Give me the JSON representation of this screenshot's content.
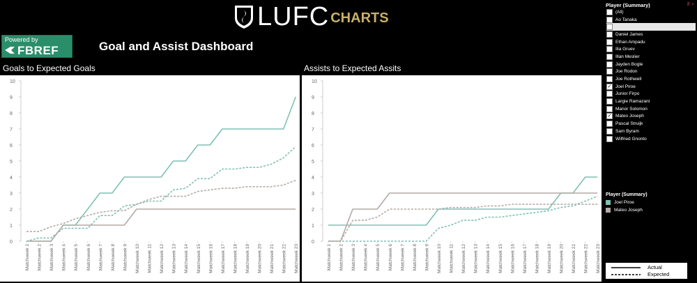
{
  "header": {
    "logo_main": "LUFC",
    "logo_sub": "CHARTS"
  },
  "badge": {
    "powered": "Powered by",
    "brand": "FBREF"
  },
  "dashboard_title": "Goal and Assist Dashboard",
  "colors": {
    "joel_piroe": "#7fc1b3",
    "mateo_joseph": "#b3aaa6",
    "background": "#000000",
    "fbref_green": "#2a8e6b"
  },
  "filter": {
    "title": "Player (Summary)",
    "items": [
      {
        "label": "(All)",
        "checked": false
      },
      {
        "label": "Ao Tanaka",
        "checked": false
      },
      {
        "label": "",
        "checked": false,
        "selected": true
      },
      {
        "label": "Daniel James",
        "checked": false
      },
      {
        "label": "Ethan Ampadu",
        "checked": false
      },
      {
        "label": "Ilia Gruev",
        "checked": false
      },
      {
        "label": "Illan Meslier",
        "checked": false
      },
      {
        "label": "Jayden Bogle",
        "checked": false
      },
      {
        "label": "Joe Rodon",
        "checked": false
      },
      {
        "label": "Joe Rothwell",
        "checked": false
      },
      {
        "label": "Joel Piroe",
        "checked": true
      },
      {
        "label": "Junior Firpo",
        "checked": false
      },
      {
        "label": "Largie Ramazani",
        "checked": false
      },
      {
        "label": "Manor Solomon",
        "checked": false
      },
      {
        "label": "Mateo Joseph",
        "checked": true
      },
      {
        "label": "Pascal Struijk",
        "checked": false
      },
      {
        "label": "Sam Byram",
        "checked": false
      },
      {
        "label": "Wilfried Gnonto",
        "checked": false
      }
    ]
  },
  "legend": {
    "title": "Player (Summary)",
    "items": [
      {
        "label": "Joel Piroe",
        "color": "#7fc1b3"
      },
      {
        "label": "Mateo Joseph",
        "color": "#b3aaa6"
      }
    ],
    "line_styles": {
      "actual": "Actual",
      "expected": "Expected"
    }
  },
  "chart_data": [
    {
      "type": "line",
      "title": "Goals to Expected Goals",
      "ylim": [
        0,
        10
      ],
      "yticks": [
        0,
        1,
        2,
        3,
        4,
        5,
        6,
        7,
        8,
        9,
        10
      ],
      "grid": false,
      "categories": [
        "Matchweek 1",
        "Matchweek 2",
        "Matchweek 3",
        "Matchweek 4",
        "Matchweek 5",
        "Matchweek 6",
        "Matchweek 7",
        "Matchweek 8",
        "Matchweek 9",
        "Matchweek 10",
        "Matchweek 11",
        "Matchweek 12",
        "Matchweek 13",
        "Matchweek 14",
        "Matchweek 15",
        "Matchweek 16",
        "Matchweek 17",
        "Matchweek 18",
        "Matchweek 19",
        "Matchweek 20",
        "Matchweek 21",
        "Matchweek 22",
        "Matchweek 23"
      ],
      "series": [
        {
          "name": "Joel Piroe",
          "measure": "Actual",
          "values": [
            0,
            0,
            0,
            1,
            1,
            2,
            3,
            3,
            4,
            4,
            4,
            4,
            5,
            5,
            6,
            6,
            7,
            7,
            7,
            7,
            7,
            7,
            9
          ]
        },
        {
          "name": "Joel Piroe",
          "measure": "Expected",
          "values": [
            0,
            0.2,
            0.2,
            0.8,
            0.8,
            0.8,
            1.6,
            1.6,
            2.2,
            2.3,
            2.5,
            2.5,
            3.2,
            3.3,
            3.9,
            3.9,
            4.5,
            4.5,
            4.6,
            4.6,
            4.8,
            5.2,
            5.9
          ]
        },
        {
          "name": "Mateo Joseph",
          "measure": "Actual",
          "values": [
            0,
            0,
            0,
            1,
            1,
            1,
            1,
            1,
            1,
            2,
            2,
            2,
            2,
            2,
            2,
            2,
            2,
            2,
            2,
            2,
            2,
            2,
            2
          ]
        },
        {
          "name": "Mateo Joseph",
          "measure": "Expected",
          "values": [
            0.6,
            0.6,
            0.9,
            1.1,
            1.4,
            1.6,
            1.8,
            1.9,
            1.9,
            2.3,
            2.6,
            2.8,
            2.8,
            2.8,
            3.1,
            3.2,
            3.3,
            3.3,
            3.4,
            3.4,
            3.4,
            3.5,
            3.8
          ]
        }
      ]
    },
    {
      "type": "line",
      "title": "Assists to Expected Assits",
      "ylim": [
        0,
        10
      ],
      "yticks": [
        0,
        1,
        2,
        3,
        4,
        5,
        6,
        7,
        8,
        9,
        10
      ],
      "grid": false,
      "categories": [
        "Matchweek 1",
        "Matchweek 2",
        "Matchweek 3",
        "Matchweek 4",
        "Matchweek 5",
        "Matchweek 6",
        "Matchweek 7",
        "Matchweek 8",
        "Matchweek 9",
        "Matchweek 10",
        "Matchweek 11",
        "Matchweek 12",
        "Matchweek 13",
        "Matchweek 14",
        "Matchweek 15",
        "Matchweek 16",
        "Matchweek 17",
        "Matchweek 18",
        "Matchweek 19",
        "Matchweek 20",
        "Matchweek 21",
        "Matchweek 22",
        "Matchweek 23"
      ],
      "series": [
        {
          "name": "Joel Piroe",
          "measure": "Actual",
          "values": [
            1,
            1,
            1,
            1,
            1,
            1,
            1,
            1,
            1,
            2,
            2,
            2,
            2,
            2,
            2,
            2,
            2,
            2,
            2,
            3,
            3,
            4,
            4
          ]
        },
        {
          "name": "Joel Piroe",
          "measure": "Expected",
          "values": [
            0,
            0,
            0,
            0,
            0,
            0,
            0,
            0,
            0,
            0.8,
            1.0,
            1.3,
            1.3,
            1.5,
            1.5,
            1.6,
            1.7,
            1.8,
            1.9,
            2.1,
            2.2,
            2.5,
            2.8
          ]
        },
        {
          "name": "Mateo Joseph",
          "measure": "Actual",
          "values": [
            0,
            0,
            2,
            2,
            2,
            3,
            3,
            3,
            3,
            3,
            3,
            3,
            3,
            3,
            3,
            3,
            3,
            3,
            3,
            3,
            3,
            3,
            3
          ]
        },
        {
          "name": "Mateo Joseph",
          "measure": "Expected",
          "values": [
            0,
            0,
            1.3,
            1.3,
            1.5,
            2.0,
            2.0,
            2.0,
            2.0,
            2.0,
            2.1,
            2.1,
            2.1,
            2.2,
            2.2,
            2.3,
            2.3,
            2.3,
            2.3,
            2.3,
            2.3,
            2.3,
            2.3
          ]
        }
      ]
    }
  ]
}
